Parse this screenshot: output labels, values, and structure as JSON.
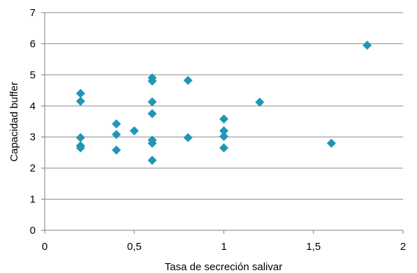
{
  "chart_data": {
    "type": "scatter",
    "title": "",
    "xlabel": "Tasa de secreción salivar",
    "ylabel": "Capacidad buffer",
    "xlim": [
      0,
      2
    ],
    "ylim": [
      0,
      7
    ],
    "x_ticks": [
      "0",
      "0,5",
      "1",
      "1,5",
      "2"
    ],
    "y_ticks": [
      "0",
      "1",
      "2",
      "3",
      "4",
      "5",
      "6",
      "7"
    ],
    "grid": "horizontal",
    "legend": "none",
    "marker": "diamond",
    "color": "#2196B6",
    "points": [
      {
        "x": 0.2,
        "y": 4.4
      },
      {
        "x": 0.2,
        "y": 4.15
      },
      {
        "x": 0.2,
        "y": 2.98
      },
      {
        "x": 0.2,
        "y": 2.72
      },
      {
        "x": 0.2,
        "y": 2.65
      },
      {
        "x": 0.4,
        "y": 3.42
      },
      {
        "x": 0.4,
        "y": 3.08
      },
      {
        "x": 0.4,
        "y": 2.58
      },
      {
        "x": 0.5,
        "y": 3.2
      },
      {
        "x": 0.6,
        "y": 4.9
      },
      {
        "x": 0.6,
        "y": 4.8
      },
      {
        "x": 0.6,
        "y": 4.13
      },
      {
        "x": 0.6,
        "y": 3.75
      },
      {
        "x": 0.6,
        "y": 2.9
      },
      {
        "x": 0.6,
        "y": 2.8
      },
      {
        "x": 0.6,
        "y": 2.25
      },
      {
        "x": 0.8,
        "y": 4.82
      },
      {
        "x": 0.8,
        "y": 2.98
      },
      {
        "x": 1.0,
        "y": 3.58
      },
      {
        "x": 1.0,
        "y": 3.2
      },
      {
        "x": 1.0,
        "y": 3.02
      },
      {
        "x": 1.0,
        "y": 2.65
      },
      {
        "x": 1.2,
        "y": 4.12
      },
      {
        "x": 1.6,
        "y": 2.8
      },
      {
        "x": 1.8,
        "y": 5.95
      }
    ]
  }
}
